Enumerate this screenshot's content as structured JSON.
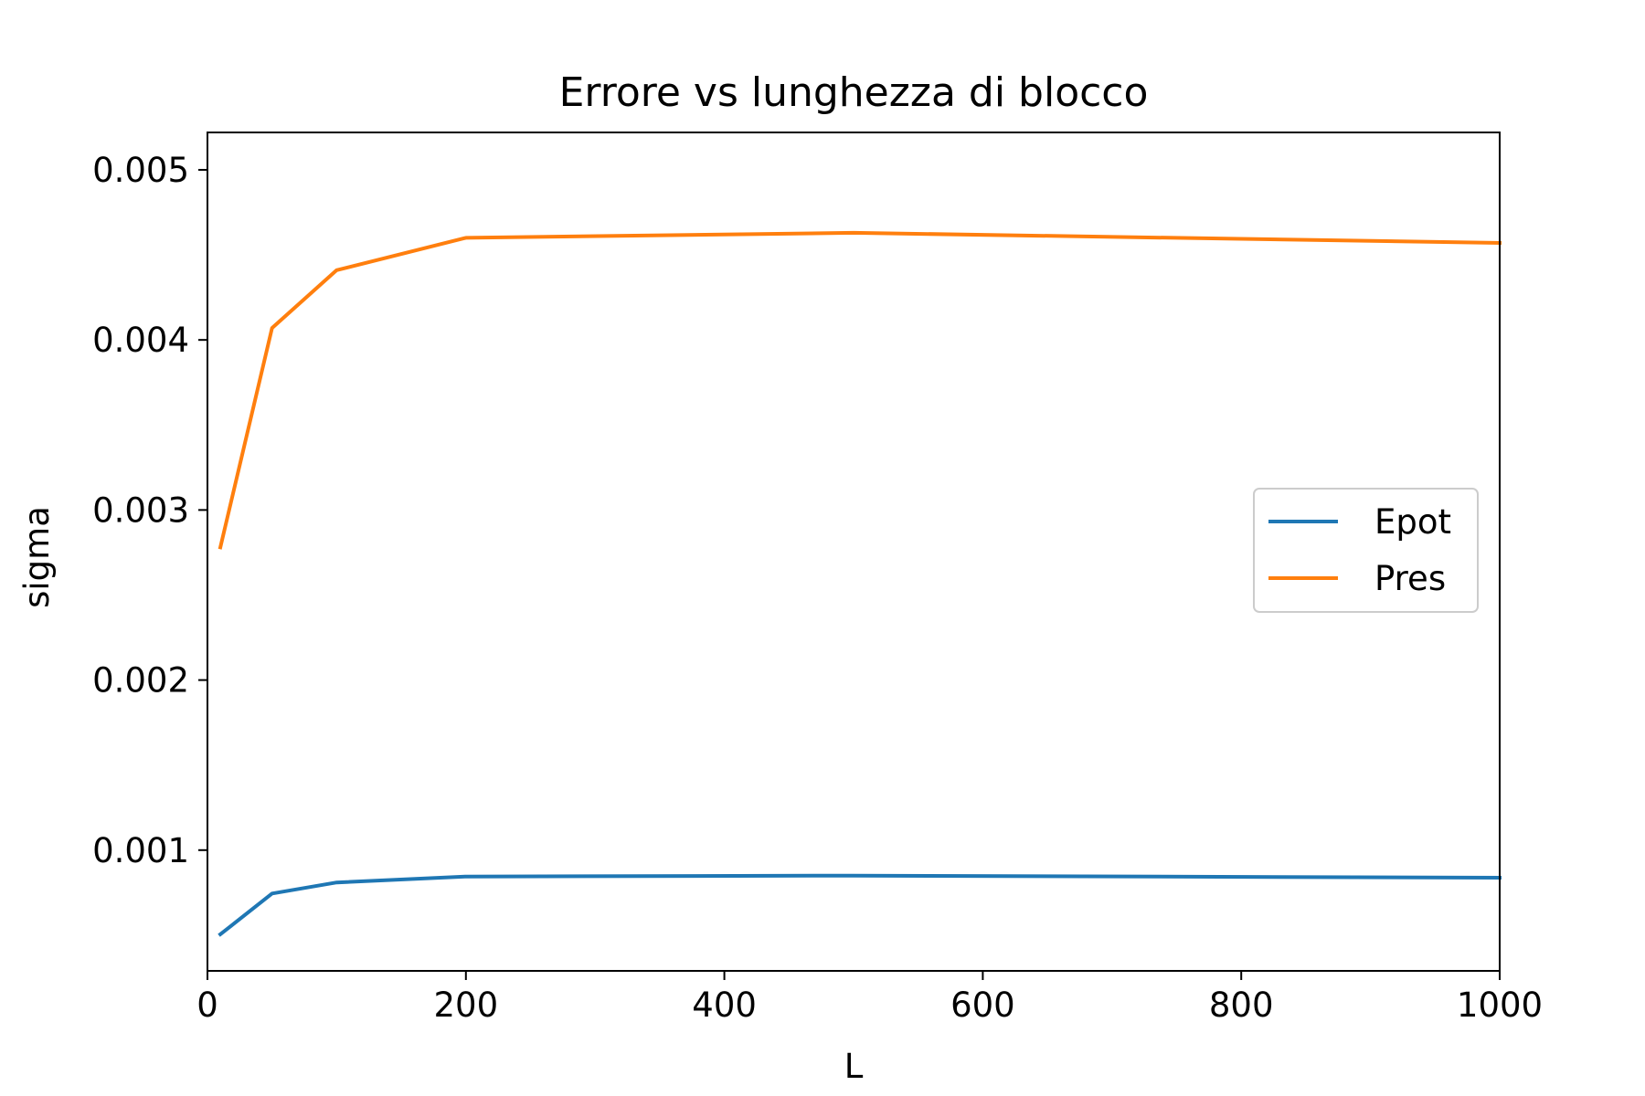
{
  "chart_data": {
    "type": "line",
    "title": "Errore vs lunghezza di blocco",
    "xlabel": "L",
    "ylabel": "sigma",
    "xlim": [
      0,
      1000
    ],
    "ylim": [
      0.00029,
      0.00522
    ],
    "x_ticks": [
      0,
      200,
      400,
      600,
      800,
      1000
    ],
    "x_tick_labels": [
      "0",
      "200",
      "400",
      "600",
      "800",
      "1000"
    ],
    "y_ticks": [
      0.001,
      0.002,
      0.003,
      0.004,
      0.005
    ],
    "y_tick_labels": [
      "0.001",
      "0.002",
      "0.003",
      "0.004",
      "0.005"
    ],
    "grid": false,
    "legend_position": "center-right",
    "series": [
      {
        "name": "Epot",
        "color": "#1f77b4",
        "x": [
          10,
          50,
          100,
          200,
          500,
          1000
        ],
        "y": [
          0.000505,
          0.000745,
          0.00081,
          0.000845,
          0.00085,
          0.000838
        ]
      },
      {
        "name": "Pres",
        "color": "#ff7f0e",
        "x": [
          10,
          50,
          100,
          200,
          500,
          1000
        ],
        "y": [
          0.00278,
          0.00407,
          0.00441,
          0.0046,
          0.00463,
          0.00457
        ]
      }
    ]
  }
}
